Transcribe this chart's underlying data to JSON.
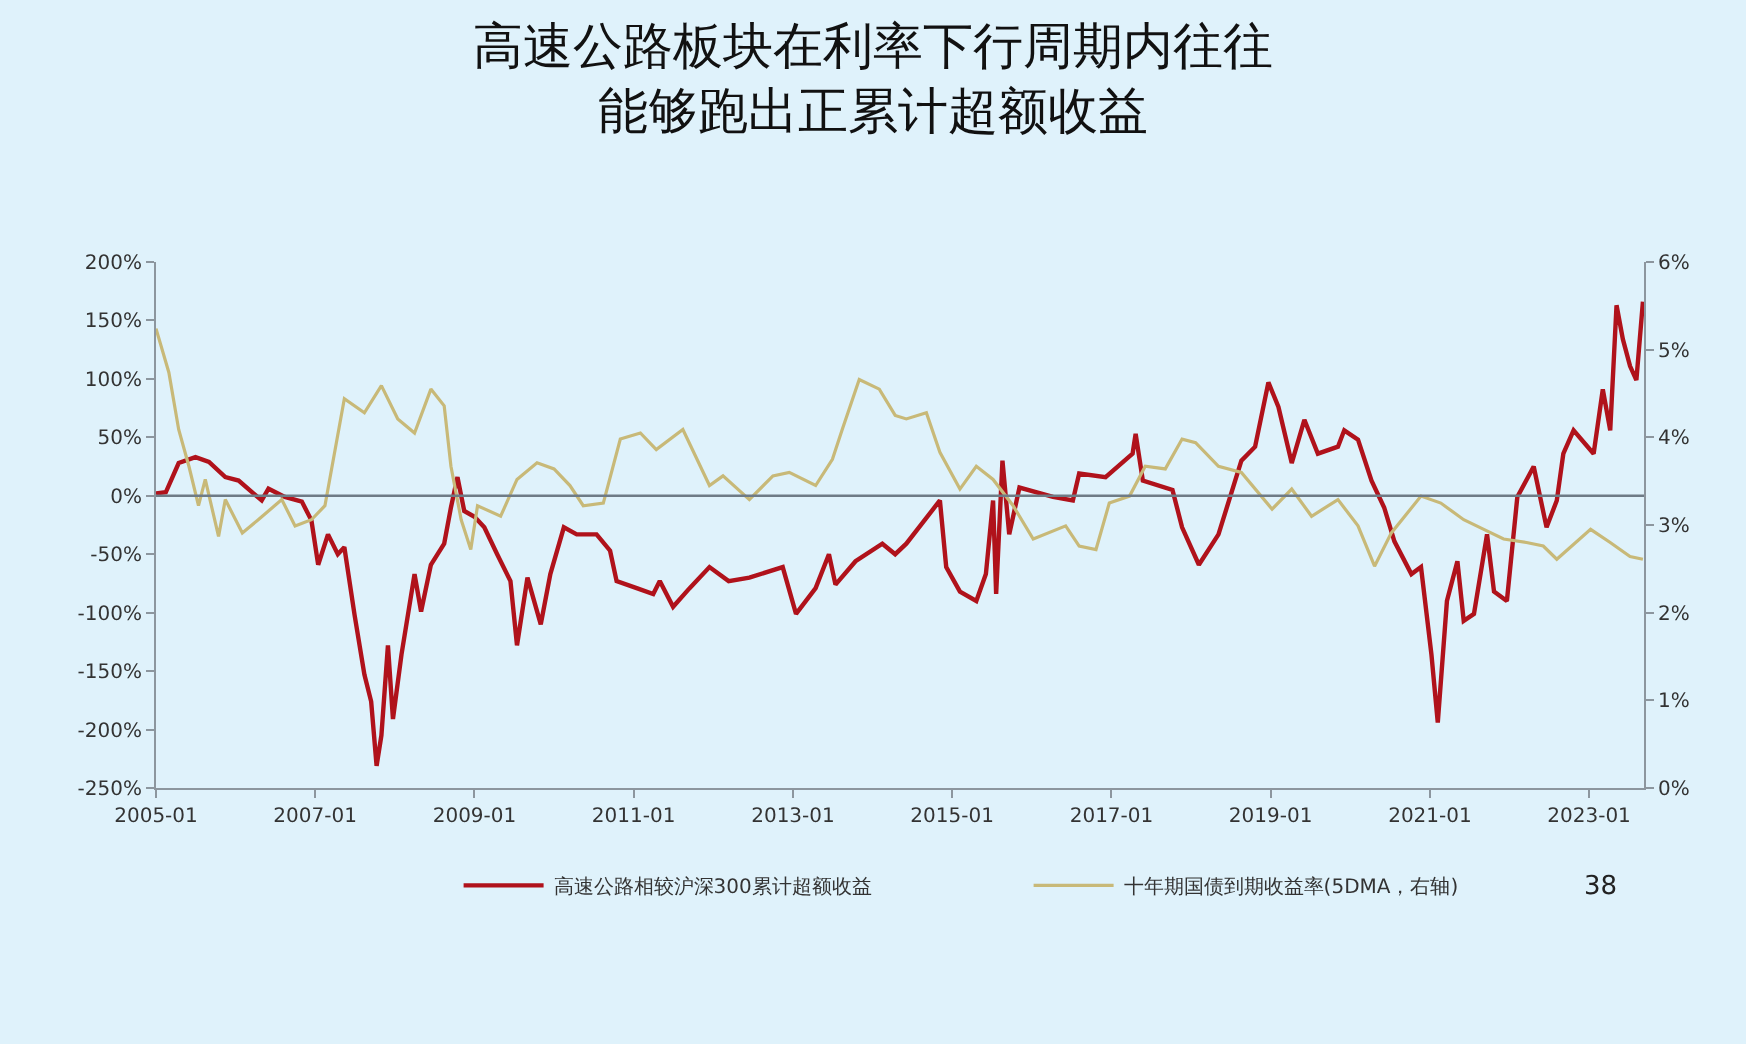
{
  "chart_data": {
    "type": "line",
    "title": "高速公路板块在利率下行周期内往往能够跑出正累计超额收益",
    "xlim": [
      "2005-01-01",
      "2023-09-10"
    ],
    "xticks": [
      "2005-01",
      "2007-01",
      "2009-01",
      "2011-01",
      "2013-01",
      "2015-01",
      "2017-01",
      "2019-01",
      "2021-01",
      "2023-01"
    ],
    "ylim": [
      -250,
      200
    ],
    "yticks": [
      {
        "value": 200,
        "label": "200%"
      },
      {
        "value": 150,
        "label": "150%"
      },
      {
        "value": 100,
        "label": "100%"
      },
      {
        "value": 50,
        "label": "50%"
      },
      {
        "value": 0,
        "label": "0%"
      },
      {
        "value": -50,
        "label": "-50%"
      },
      {
        "value": -100,
        "label": "-100%"
      },
      {
        "value": -150,
        "label": "-150%"
      },
      {
        "value": -200,
        "label": "-200%"
      },
      {
        "value": -250,
        "label": "-250%"
      }
    ],
    "y2lim": [
      0,
      6
    ],
    "y2ticks": [
      {
        "value": 0,
        "label": "0%"
      },
      {
        "value": 1,
        "label": "1%"
      },
      {
        "value": 2,
        "label": "2%"
      },
      {
        "value": 3,
        "label": "3%"
      },
      {
        "value": 4,
        "label": "4%"
      },
      {
        "value": 5,
        "label": "5%"
      },
      {
        "value": 6,
        "label": "6%"
      }
    ],
    "grid": false,
    "legend": "bottom",
    "marker": "none",
    "line_style": "solid",
    "ref_lines": [
      {
        "axis": "y",
        "value": 0,
        "color": "#6e7b86"
      }
    ],
    "annotations": [
      "38"
    ],
    "series": [
      {
        "name": "高速公路相较沪深300累计超额收益",
        "color": "#b0121b",
        "axis": "y",
        "x": [
          "2005-01-01",
          "2005-02-15",
          "2005-04-15",
          "2005-07-01",
          "2005-09-01",
          "2005-11-15",
          "2006-01-15",
          "2006-05-01",
          "2006-06-01",
          "2006-08-15",
          "2006-11-01",
          "2006-12-15",
          "2007-01-15",
          "2007-03-01",
          "2007-04-15",
          "2007-05-15",
          "2007-07-01",
          "2007-08-15",
          "2007-09-15",
          "2007-10-10",
          "2007-11-01",
          "2007-12-01",
          "2007-12-24",
          "2008-02-01",
          "2008-04-01",
          "2008-05-01",
          "2008-06-15",
          "2008-08-15",
          "2008-09-15",
          "2008-10-15",
          "2008-11-15",
          "2009-01-01",
          "2009-02-15",
          "2009-04-15",
          "2009-06-15",
          "2009-07-15",
          "2009-09-01",
          "2009-11-01",
          "2009-12-15",
          "2010-02-15",
          "2010-04-15",
          "2010-07-15",
          "2010-09-15",
          "2010-10-15",
          "2011-01-15",
          "2011-04-01",
          "2011-05-01",
          "2011-07-01",
          "2011-09-15",
          "2011-12-15",
          "2012-03-12",
          "2012-06-15",
          "2012-11-15",
          "2013-01-15",
          "2013-04-15",
          "2013-06-15",
          "2013-07-15",
          "2013-10-15",
          "2014-02-15",
          "2014-04-15",
          "2014-06-05",
          "2014-11-06",
          "2014-12-05",
          "2015-02-06",
          "2015-04-22",
          "2015-06-05",
          "2015-07-08",
          "2015-07-22",
          "2015-08-20",
          "2015-09-20",
          "2015-11-06",
          "2016-04-08",
          "2016-07-08",
          "2016-08-06",
          "2016-12-05",
          "2017-04-08",
          "2017-04-22",
          "2017-05-25",
          "2017-10-08",
          "2017-11-21",
          "2018-02-06",
          "2018-05-07",
          "2018-08-20",
          "2018-10-22",
          "2018-12-22",
          "2019-02-06",
          "2019-04-08",
          "2019-06-05",
          "2019-08-06",
          "2019-11-06",
          "2019-12-05",
          "2020-02-06",
          "2020-04-08",
          "2020-06-05",
          "2020-07-22",
          "2020-10-08",
          "2020-11-21",
          "2021-01-08",
          "2021-02-06",
          "2021-03-20",
          "2021-05-07",
          "2021-06-05",
          "2021-07-22",
          "2021-09-20",
          "2021-10-22",
          "2021-12-20",
          "2022-02-06",
          "2022-04-22",
          "2022-06-20",
          "2022-08-06",
          "2022-09-05",
          "2022-10-22",
          "2023-01-22",
          "2023-03-05",
          "2023-04-08",
          "2023-05-07",
          "2023-06-05",
          "2023-07-08",
          "2023-08-06",
          "2023-09-05"
        ],
        "values": [
          2,
          3,
          28,
          33,
          29,
          16,
          13,
          -4,
          6,
          -1,
          -5,
          -21,
          -59,
          -33,
          -50,
          -44,
          -102,
          -153,
          -176,
          -231,
          -205,
          -128,
          -191,
          -136,
          -67,
          -99,
          -59,
          -41,
          -10,
          16,
          -13,
          -18,
          -27,
          -50,
          -73,
          -128,
          -70,
          -110,
          -67,
          -27,
          -33,
          -33,
          -47,
          -73,
          -79,
          -84,
          -73,
          -95,
          -79,
          -61,
          -73,
          -70,
          -61,
          -101,
          -79,
          -50,
          -76,
          -56,
          -41,
          -50,
          -41,
          -4,
          -61,
          -82,
          -90,
          -67,
          -4,
          -84,
          30,
          -33,
          7,
          -1,
          -4,
          19,
          16,
          36,
          53,
          13,
          5,
          -27,
          -59,
          -33,
          30,
          42,
          97,
          76,
          28,
          65,
          36,
          42,
          56,
          48,
          13,
          -10,
          -39,
          -67,
          -61,
          -136,
          -194,
          -90,
          -56,
          -107,
          -101,
          -33,
          -82,
          -90,
          -1,
          25,
          -27,
          -4,
          36,
          56,
          36,
          91,
          56,
          163,
          134,
          111,
          99,
          166
        ]
      },
      {
        "name": "十年期国债到期收益率(5DMA，右轴)",
        "color": "#c8b978",
        "axis": "y2",
        "x": [
          "2005-01-01",
          "2005-03-01",
          "2005-04-15",
          "2005-06-01",
          "2005-07-15",
          "2005-08-15",
          "2005-10-15",
          "2005-11-15",
          "2006-02-01",
          "2006-04-15",
          "2006-08-01",
          "2006-10-01",
          "2006-12-15",
          "2007-02-15",
          "2007-05-15",
          "2007-08-15",
          "2007-11-01",
          "2008-01-15",
          "2008-04-01",
          "2008-06-15",
          "2008-08-15",
          "2008-09-15",
          "2008-11-01",
          "2008-12-15",
          "2009-01-15",
          "2009-05-01",
          "2009-07-15",
          "2009-10-15",
          "2010-01-01",
          "2010-03-15",
          "2010-05-15",
          "2010-08-15",
          "2010-11-01",
          "2011-02-01",
          "2011-04-15",
          "2011-08-15",
          "2011-12-15",
          "2012-02-15",
          "2012-06-15",
          "2012-10-01",
          "2012-12-15",
          "2013-04-15",
          "2013-07-01",
          "2013-08-15",
          "2013-11-01",
          "2014-02-01",
          "2014-04-15",
          "2014-06-05",
          "2014-09-05",
          "2014-11-06",
          "2015-02-06",
          "2015-04-22",
          "2015-07-08",
          "2015-10-08",
          "2016-01-08",
          "2016-06-05",
          "2016-08-06",
          "2016-10-22",
          "2016-12-22",
          "2017-03-25",
          "2017-06-05",
          "2017-09-05",
          "2017-11-21",
          "2018-01-22",
          "2018-05-07",
          "2018-08-20",
          "2019-01-08",
          "2019-04-08",
          "2019-07-08",
          "2019-11-06",
          "2020-02-06",
          "2020-04-22",
          "2020-07-08",
          "2020-11-21",
          "2021-02-20",
          "2021-06-05",
          "2021-09-05",
          "2021-12-05",
          "2022-03-20",
          "2022-06-05",
          "2022-08-06",
          "2023-01-08",
          "2023-04-08",
          "2023-07-08",
          "2023-09-05"
        ],
        "values": [
          5.24,
          4.74,
          4.09,
          3.67,
          3.22,
          3.52,
          2.87,
          3.29,
          2.91,
          3.06,
          3.29,
          2.99,
          3.06,
          3.22,
          4.44,
          4.28,
          4.59,
          4.21,
          4.05,
          4.55,
          4.36,
          3.67,
          3.06,
          2.72,
          3.22,
          3.1,
          3.52,
          3.71,
          3.64,
          3.45,
          3.22,
          3.25,
          3.98,
          4.05,
          3.86,
          4.09,
          3.45,
          3.56,
          3.29,
          3.56,
          3.6,
          3.45,
          3.75,
          4.09,
          4.66,
          4.55,
          4.25,
          4.21,
          4.28,
          3.83,
          3.41,
          3.67,
          3.52,
          3.22,
          2.84,
          2.99,
          2.76,
          2.72,
          3.25,
          3.33,
          3.67,
          3.64,
          3.98,
          3.94,
          3.67,
          3.6,
          3.18,
          3.41,
          3.1,
          3.29,
          2.99,
          2.53,
          2.91,
          3.33,
          3.25,
          3.06,
          2.95,
          2.84,
          2.8,
          2.76,
          2.61,
          2.95,
          2.8,
          2.64,
          2.61
        ]
      }
    ]
  }
}
